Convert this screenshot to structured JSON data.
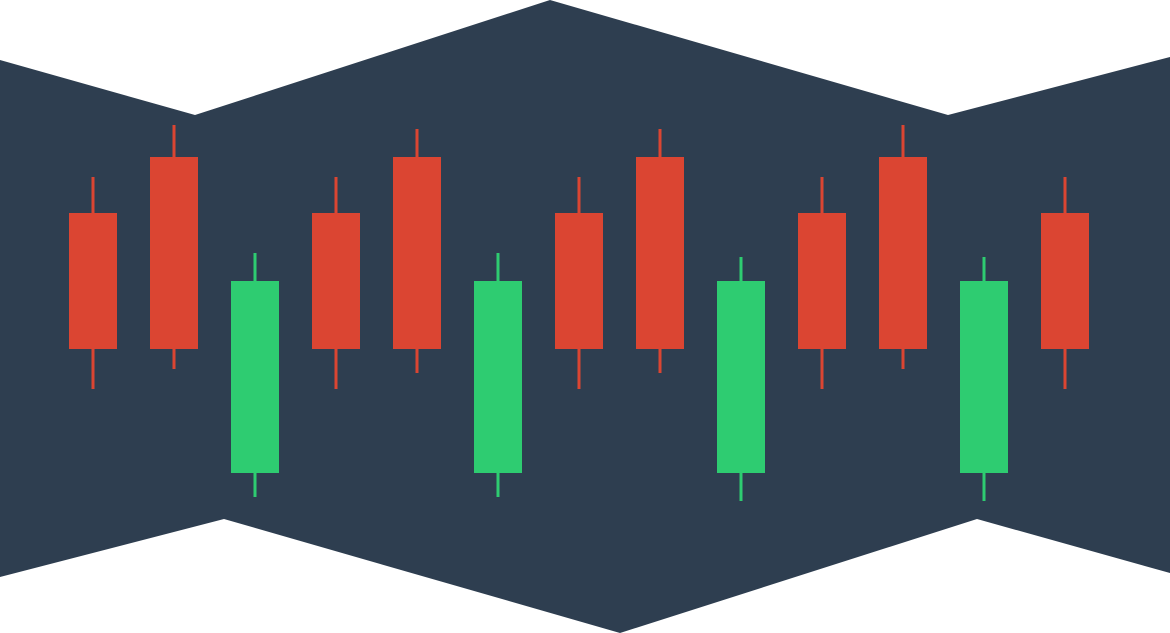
{
  "colors": {
    "background": "#ffffff",
    "panel": "#2e3e50",
    "down": "#db4532",
    "up": "#2ecc71"
  },
  "chart_data": {
    "type": "candlestick",
    "title": "",
    "xlabel": "",
    "ylabel": "",
    "axes_visible": false,
    "grid": false,
    "legend": "none",
    "ylim": [
      0,
      100
    ],
    "candles": [
      {
        "index": 1,
        "direction": "down",
        "open": 66,
        "close": 32,
        "high": 75,
        "low": 22
      },
      {
        "index": 2,
        "direction": "down",
        "open": 80,
        "close": 32,
        "high": 88,
        "low": 27
      },
      {
        "index": 3,
        "direction": "up",
        "open": 1,
        "close": 49,
        "high": 56,
        "low": -5
      },
      {
        "index": 4,
        "direction": "down",
        "open": 66,
        "close": 32,
        "high": 75,
        "low": 22
      },
      {
        "index": 5,
        "direction": "down",
        "open": 80,
        "close": 32,
        "high": 87,
        "low": 26
      },
      {
        "index": 6,
        "direction": "up",
        "open": 1,
        "close": 49,
        "high": 56,
        "low": -5
      },
      {
        "index": 7,
        "direction": "down",
        "open": 66,
        "close": 32,
        "high": 75,
        "low": 22
      },
      {
        "index": 8,
        "direction": "down",
        "open": 80,
        "close": 32,
        "high": 87,
        "low": 26
      },
      {
        "index": 9,
        "direction": "up",
        "open": 1,
        "close": 49,
        "high": 55,
        "low": -6
      },
      {
        "index": 10,
        "direction": "down",
        "open": 66,
        "close": 32,
        "high": 75,
        "low": 22
      },
      {
        "index": 11,
        "direction": "down",
        "open": 80,
        "close": 32,
        "high": 88,
        "low": 27
      },
      {
        "index": 12,
        "direction": "up",
        "open": 1,
        "close": 49,
        "high": 55,
        "low": -6
      },
      {
        "index": 13,
        "direction": "down",
        "open": 66,
        "close": 32,
        "high": 75,
        "low": 22
      }
    ]
  }
}
